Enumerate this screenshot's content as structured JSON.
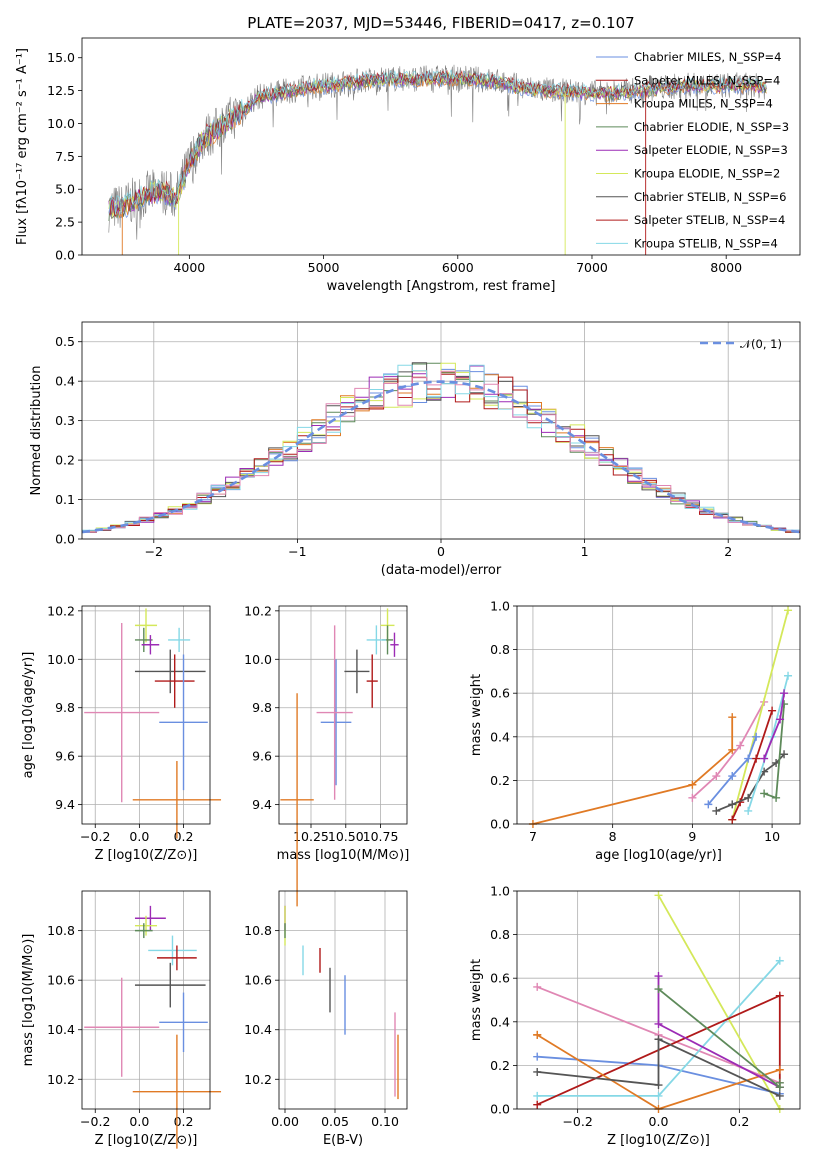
{
  "colors": {
    "c1": "#6a8fe0",
    "c2": "#9c2bb5",
    "c3": "#e07a25",
    "c4": "#5e8a5a",
    "c5": "#ad52b8",
    "c6": "#d4e85a",
    "c7": "#555555",
    "c8": "#b01a1a",
    "c9": "#85d8e6",
    "c10": "#e087b4"
  },
  "chart_data": [
    {
      "type": "line",
      "title": "PLATE=2037, MJD=53446, FIBERID=0417, z=0.107",
      "xlabel": "wavelength [Angstrom, rest frame]",
      "ylabel": "Flux [fλ10⁻¹⁷ erg cm⁻² s⁻¹ A⁻¹]",
      "xlim": [
        3200,
        8550
      ],
      "ylim": [
        0,
        16.5
      ],
      "xticks": [
        4000,
        5000,
        6000,
        7000,
        8000
      ],
      "yticks": [
        0.0,
        2.5,
        5.0,
        7.5,
        10.0,
        12.5,
        15.0
      ],
      "legend": [
        "Chabrier MILES, N_SSP=4",
        "Salpeter MILES, N_SSP=4",
        "Kroupa MILES, N_SSP=4",
        "Chabrier ELODIE, N_SSP=3",
        "Salpeter ELODIE, N_SSP=3",
        "Kroupa ELODIE, N_SSP=2",
        "Chabrier STELIB, N_SSP=6",
        "Salpeter STELIB, N_SSP=4",
        "Kroupa STELIB, N_SSP=4"
      ],
      "legend_position": "right",
      "data_envelope": {
        "x": [
          3400,
          3500,
          3600,
          3700,
          3800,
          3900,
          4000,
          4100,
          4200,
          4300,
          4400,
          4500,
          4700,
          4900,
          5100,
          5300,
          5500,
          5700,
          5900,
          6100,
          6300,
          6500,
          6700,
          6900,
          7100,
          7300,
          7500,
          7700,
          7900,
          8100,
          8300
        ],
        "y": [
          3.5,
          3.7,
          4.2,
          4.7,
          4.9,
          4.4,
          7.0,
          8.9,
          9.5,
          10.3,
          11.0,
          12.0,
          12.4,
          12.8,
          13.0,
          13.3,
          13.4,
          13.4,
          13.5,
          13.4,
          13.2,
          12.7,
          12.5,
          12.4,
          12.3,
          12.5,
          12.7,
          12.9,
          12.9,
          12.9,
          12.8
        ]
      }
    },
    {
      "type": "bar",
      "xlabel": "(data-model)/error",
      "ylabel": "Normed distribution",
      "xlim": [
        -2.5,
        2.5
      ],
      "ylim": [
        0,
        0.55
      ],
      "xticks": [
        -2,
        -1,
        0,
        1,
        2
      ],
      "yticks": [
        0.0,
        0.1,
        0.2,
        0.3,
        0.4,
        0.5
      ],
      "legend": [
        "𝒩(0, 1)"
      ],
      "legend_position": "top-right",
      "bin_width": 0.1
    },
    {
      "type": "scatter",
      "xlabel": "Z [log10(Z/Z⊙)]",
      "ylabel": "age [log10(age/yr)]",
      "xlim": [
        -0.26,
        0.32
      ],
      "ylim": [
        9.32,
        10.22
      ],
      "xticks": [
        -0.2,
        0.0,
        0.2
      ],
      "yticks": [
        9.4,
        9.6,
        9.8,
        10.0,
        10.2
      ],
      "points": [
        {
          "color": "c6",
          "x": 0.03,
          "y": 10.14,
          "xerr": [
            0.05,
            0.05
          ],
          "yerr": [
            0.07,
            0.07
          ]
        },
        {
          "color": "c4",
          "x": 0.02,
          "y": 10.08,
          "xerr": [
            0.04,
            0.04
          ],
          "yerr": [
            0.05,
            0.05
          ]
        },
        {
          "color": "c2",
          "x": 0.05,
          "y": 10.06,
          "xerr": [
            0.04,
            0.04
          ],
          "yerr": [
            0.04,
            0.04
          ]
        },
        {
          "color": "c9",
          "x": 0.18,
          "y": 10.08,
          "xerr": [
            0.05,
            0.05
          ],
          "yerr": [
            0.05,
            0.05
          ]
        },
        {
          "color": "c7",
          "x": 0.14,
          "y": 9.95,
          "xerr": [
            0.16,
            0.16
          ],
          "yerr": [
            0.09,
            0.09
          ]
        },
        {
          "color": "c8",
          "x": 0.16,
          "y": 9.91,
          "xerr": [
            0.09,
            0.09
          ],
          "yerr": [
            0.11,
            0.11
          ]
        },
        {
          "color": "c1",
          "x": 0.2,
          "y": 9.74,
          "xerr": [
            0.11,
            0.11
          ],
          "yerr": [
            0.28,
            0.28
          ]
        },
        {
          "color": "c10",
          "x": -0.08,
          "y": 9.78,
          "xerr": [
            0.17,
            0.17
          ],
          "yerr": [
            0.37,
            0.37
          ]
        },
        {
          "color": "c3",
          "x": 0.17,
          "y": 9.42,
          "xerr": [
            0.2,
            0.2
          ],
          "yerr": [
            0.16,
            0.16
          ]
        }
      ]
    },
    {
      "type": "scatter",
      "xlabel": "mass [log10(M/M⊙)]",
      "ylabel": "",
      "xlim": [
        10.02,
        10.94
      ],
      "ylim": [
        9.32,
        10.22
      ],
      "xticks": [
        10.25,
        10.5,
        10.75
      ],
      "yticks": [
        9.4,
        9.6,
        9.8,
        10.0,
        10.2
      ],
      "points": [
        {
          "color": "c6",
          "x": 10.8,
          "y": 10.14,
          "xerr": [
            0.05,
            0.05
          ],
          "yerr": [
            0.07,
            0.07
          ]
        },
        {
          "color": "c4",
          "x": 10.8,
          "y": 10.08,
          "xerr": [
            0.04,
            0.04
          ],
          "yerr": [
            0.06,
            0.06
          ]
        },
        {
          "color": "c2",
          "x": 10.85,
          "y": 10.06,
          "xerr": [
            0.03,
            0.03
          ],
          "yerr": [
            0.05,
            0.05
          ]
        },
        {
          "color": "c9",
          "x": 10.72,
          "y": 10.08,
          "xerr": [
            0.07,
            0.07
          ],
          "yerr": [
            0.06,
            0.06
          ]
        },
        {
          "color": "c7",
          "x": 10.58,
          "y": 9.95,
          "xerr": [
            0.09,
            0.09
          ],
          "yerr": [
            0.09,
            0.09
          ]
        },
        {
          "color": "c8",
          "x": 10.69,
          "y": 9.91,
          "xerr": [
            0.04,
            0.04
          ],
          "yerr": [
            0.11,
            0.11
          ]
        },
        {
          "color": "c1",
          "x": 10.43,
          "y": 9.74,
          "xerr": [
            0.11,
            0.11
          ],
          "yerr": [
            0.26,
            0.26
          ]
        },
        {
          "color": "c10",
          "x": 10.42,
          "y": 9.78,
          "xerr": [
            0.13,
            0.13
          ],
          "yerr": [
            0.36,
            0.36
          ]
        },
        {
          "color": "c3",
          "x": 10.15,
          "y": 9.42,
          "xerr": [
            0.12,
            0.12
          ],
          "yerr": [
            0.44,
            0.44
          ]
        }
      ]
    },
    {
      "type": "line",
      "xlabel": "age [log10(age/yr)]",
      "ylabel": "mass weight",
      "xlim": [
        6.8,
        10.35
      ],
      "ylim": [
        0,
        1
      ],
      "xticks": [
        7,
        8,
        9,
        10
      ],
      "yticks": [
        0.0,
        0.2,
        0.4,
        0.6,
        0.8,
        1.0
      ],
      "series": [
        {
          "color": "c3",
          "x": [
            7.0,
            9.0,
            9.5,
            9.5
          ],
          "y": [
            0.0,
            0.18,
            0.34,
            0.49
          ]
        },
        {
          "color": "c10",
          "x": [
            9.0,
            9.3,
            9.6,
            9.9
          ],
          "y": [
            0.12,
            0.22,
            0.36,
            0.56
          ]
        },
        {
          "color": "c6",
          "x": [
            9.5,
            10.2
          ],
          "y": [
            0.02,
            0.98
          ]
        },
        {
          "color": "c1",
          "x": [
            9.2,
            9.5,
            9.7,
            9.8
          ],
          "y": [
            0.09,
            0.22,
            0.3,
            0.4
          ]
        },
        {
          "color": "c8",
          "x": [
            9.5,
            9.6,
            9.8,
            10.0
          ],
          "y": [
            0.02,
            0.1,
            0.3,
            0.52
          ]
        },
        {
          "color": "c7",
          "x": [
            9.3,
            9.5,
            9.7,
            9.9,
            10.05,
            10.15
          ],
          "y": [
            0.06,
            0.09,
            0.12,
            0.24,
            0.28,
            0.32
          ]
        },
        {
          "color": "c4",
          "x": [
            9.9,
            10.05,
            10.15
          ],
          "y": [
            0.14,
            0.12,
            0.55
          ]
        },
        {
          "color": "c9",
          "x": [
            9.7,
            10.0,
            10.2
          ],
          "y": [
            0.06,
            0.4,
            0.68
          ]
        },
        {
          "color": "c2",
          "x": [
            9.9,
            10.1,
            10.15
          ],
          "y": [
            0.3,
            0.48,
            0.6
          ]
        }
      ]
    },
    {
      "type": "scatter",
      "xlabel": "Z [log10(Z/Z⊙)]",
      "ylabel": "mass [log10(M/M⊙)]",
      "xlim": [
        -0.26,
        0.32
      ],
      "ylim": [
        10.08,
        10.96
      ],
      "xticks": [
        -0.2,
        0.0,
        0.2
      ],
      "yticks": [
        10.2,
        10.4,
        10.6,
        10.8
      ],
      "points": [
        {
          "color": "c2",
          "x": 0.05,
          "y": 10.85,
          "xerr": [
            0.07,
            0.07
          ],
          "yerr": [
            0.05,
            0.05
          ]
        },
        {
          "color": "c6",
          "x": 0.03,
          "y": 10.82,
          "xerr": [
            0.05,
            0.05
          ],
          "yerr": [
            0.04,
            0.04
          ]
        },
        {
          "color": "c4",
          "x": 0.02,
          "y": 10.8,
          "xerr": [
            0.04,
            0.04
          ],
          "yerr": [
            0.03,
            0.03
          ]
        },
        {
          "color": "c9",
          "x": 0.15,
          "y": 10.72,
          "xerr": [
            0.11,
            0.11
          ],
          "yerr": [
            0.06,
            0.06
          ]
        },
        {
          "color": "c8",
          "x": 0.17,
          "y": 10.69,
          "xerr": [
            0.09,
            0.09
          ],
          "yerr": [
            0.05,
            0.05
          ]
        },
        {
          "color": "c7",
          "x": 0.14,
          "y": 10.58,
          "xerr": [
            0.16,
            0.16
          ],
          "yerr": [
            0.09,
            0.09
          ]
        },
        {
          "color": "c1",
          "x": 0.2,
          "y": 10.43,
          "xerr": [
            0.11,
            0.11
          ],
          "yerr": [
            0.12,
            0.12
          ]
        },
        {
          "color": "c10",
          "x": -0.08,
          "y": 10.41,
          "xerr": [
            0.17,
            0.17
          ],
          "yerr": [
            0.2,
            0.2
          ]
        },
        {
          "color": "c3",
          "x": 0.17,
          "y": 10.15,
          "xerr": [
            0.2,
            0.2
          ],
          "yerr": [
            0.23,
            0.23
          ]
        }
      ]
    },
    {
      "type": "scatter",
      "xlabel": "E(B-V)",
      "ylabel": "",
      "xlim": [
        -0.006,
        0.122
      ],
      "ylim": [
        10.08,
        10.96
      ],
      "xticks": [
        0.0,
        0.05,
        0.1
      ],
      "yticks": [
        10.2,
        10.4,
        10.6,
        10.8
      ],
      "points": [
        {
          "color": "c2",
          "x": 0.0,
          "y": 10.85,
          "xerr": [
            0,
            0
          ],
          "yerr": [
            0.05,
            0.05
          ]
        },
        {
          "color": "c6",
          "x": 0.0,
          "y": 10.82,
          "xerr": [
            0,
            0
          ],
          "yerr": [
            0.08,
            0.08
          ]
        },
        {
          "color": "c4",
          "x": 0.0,
          "y": 10.8,
          "xerr": [
            0,
            0
          ],
          "yerr": [
            0.03,
            0.03
          ]
        },
        {
          "color": "c9",
          "x": 0.018,
          "y": 10.68,
          "xerr": [
            0,
            0
          ],
          "yerr": [
            0.06,
            0.06
          ]
        },
        {
          "color": "c8",
          "x": 0.035,
          "y": 10.68,
          "xerr": [
            0,
            0
          ],
          "yerr": [
            0.05,
            0.05
          ]
        },
        {
          "color": "c7",
          "x": 0.045,
          "y": 10.56,
          "xerr": [
            0,
            0
          ],
          "yerr": [
            0.09,
            0.09
          ]
        },
        {
          "color": "c1",
          "x": 0.06,
          "y": 10.5,
          "xerr": [
            0,
            0
          ],
          "yerr": [
            0.12,
            0.12
          ]
        },
        {
          "color": "c10",
          "x": 0.11,
          "y": 10.3,
          "xerr": [
            0,
            0
          ],
          "yerr": [
            0.17,
            0.17
          ]
        },
        {
          "color": "c3",
          "x": 0.113,
          "y": 10.25,
          "xerr": [
            0,
            0
          ],
          "yerr": [
            0.13,
            0.13
          ]
        }
      ]
    },
    {
      "type": "line",
      "xlabel": "Z [log10(Z/Z⊙)]",
      "ylabel": "mass weight",
      "xlim": [
        -0.35,
        0.35
      ],
      "ylim": [
        0,
        1
      ],
      "xticks": [
        -0.2,
        0.0,
        0.2
      ],
      "yticks": [
        0.0,
        0.2,
        0.4,
        0.6,
        0.8,
        1.0
      ],
      "series": [
        {
          "color": "c6",
          "x": [
            0.0,
            0.3
          ],
          "y": [
            0.98,
            0.0
          ]
        },
        {
          "color": "c10",
          "x": [
            -0.3,
            0.0,
            0.3
          ],
          "y": [
            0.56,
            0.34,
            0.12
          ]
        },
        {
          "color": "c1",
          "x": [
            -0.3,
            0.0,
            0.3
          ],
          "y": [
            0.24,
            0.2,
            0.07
          ]
        },
        {
          "color": "c9",
          "x": [
            -0.3,
            0.0,
            0.3
          ],
          "y": [
            0.06,
            0.06,
            0.68
          ]
        },
        {
          "color": "c8",
          "x": [
            -0.3,
            0.3,
            0.3
          ],
          "y": [
            0.02,
            0.52,
            0.1
          ]
        },
        {
          "color": "c3",
          "x": [
            -0.3,
            -0.3,
            0.0,
            0.3
          ],
          "y": [
            0.34,
            0.34,
            0.0,
            0.18
          ]
        },
        {
          "color": "c7",
          "x": [
            -0.3,
            0.0,
            0.0,
            0.3
          ],
          "y": [
            0.17,
            0.11,
            0.32,
            0.06
          ]
        },
        {
          "color": "c2",
          "x": [
            0.0,
            0.0,
            0.3
          ],
          "y": [
            0.61,
            0.39,
            0.1
          ]
        },
        {
          "color": "c4",
          "x": [
            0.0,
            0.3,
            0.3
          ],
          "y": [
            0.55,
            0.1,
            0.12
          ]
        }
      ]
    }
  ]
}
